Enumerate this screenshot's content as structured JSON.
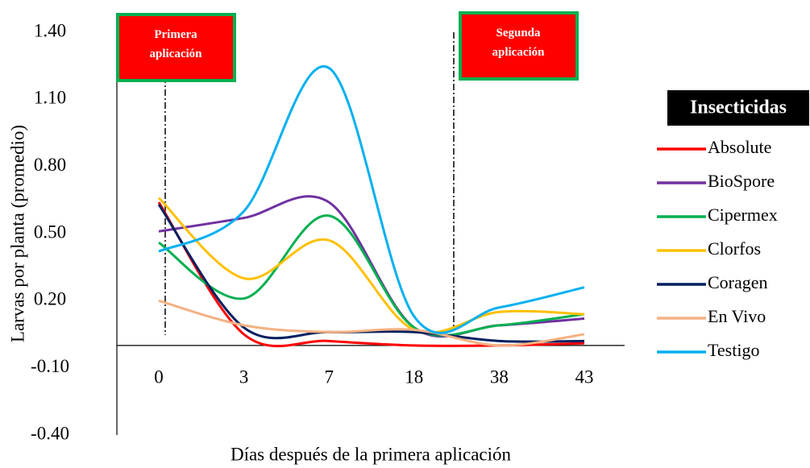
{
  "chart_data": {
    "type": "line",
    "xlabel": "Días después de la primera aplicación",
    "ylabel": "Larvas por planta (promedio)",
    "categories": [
      "0",
      "3",
      "7",
      "18",
      "38",
      "43"
    ],
    "ylim": [
      -0.4,
      1.4
    ],
    "yticks": [
      {
        "value": 1.4,
        "label": "1.40"
      },
      {
        "value": 1.1,
        "label": "1.10"
      },
      {
        "value": 0.8,
        "label": "0.80"
      },
      {
        "value": 0.5,
        "label": "0.50"
      },
      {
        "value": 0.2,
        "label": "0.20"
      },
      {
        "value": -0.1,
        "label": "-0.10"
      },
      {
        "value": -0.4,
        "label": "-0.40"
      }
    ],
    "grid": false,
    "smooth": true,
    "legend_title": "Insecticidas",
    "legend_position": "right",
    "annotations": [
      "Primera aplicación",
      "Segunda aplicación"
    ],
    "series": [
      {
        "name": "Absolute",
        "color": "#ff0000",
        "values": [
          0.64,
          0.05,
          0.02,
          0.0,
          0.0,
          0.01
        ]
      },
      {
        "name": "BioSpore",
        "color": "#7030a0",
        "values": [
          0.51,
          0.57,
          0.64,
          0.08,
          0.09,
          0.12
        ]
      },
      {
        "name": "Cipermex",
        "color": "#00b050",
        "values": [
          0.46,
          0.21,
          0.58,
          0.08,
          0.09,
          0.14
        ]
      },
      {
        "name": "Clorfos",
        "color": "#ffc000",
        "values": [
          0.66,
          0.3,
          0.47,
          0.07,
          0.15,
          0.14
        ]
      },
      {
        "name": "Coragen",
        "color": "#002060",
        "values": [
          0.63,
          0.08,
          0.06,
          0.06,
          0.02,
          0.02
        ]
      },
      {
        "name": "En Vivo",
        "color": "#f4b183",
        "values": [
          0.2,
          0.09,
          0.06,
          0.07,
          0.0,
          0.05
        ]
      },
      {
        "name": "Testigo",
        "color": "#00b0f0",
        "values": [
          0.42,
          0.6,
          1.24,
          0.13,
          0.17,
          0.26
        ]
      }
    ]
  }
}
